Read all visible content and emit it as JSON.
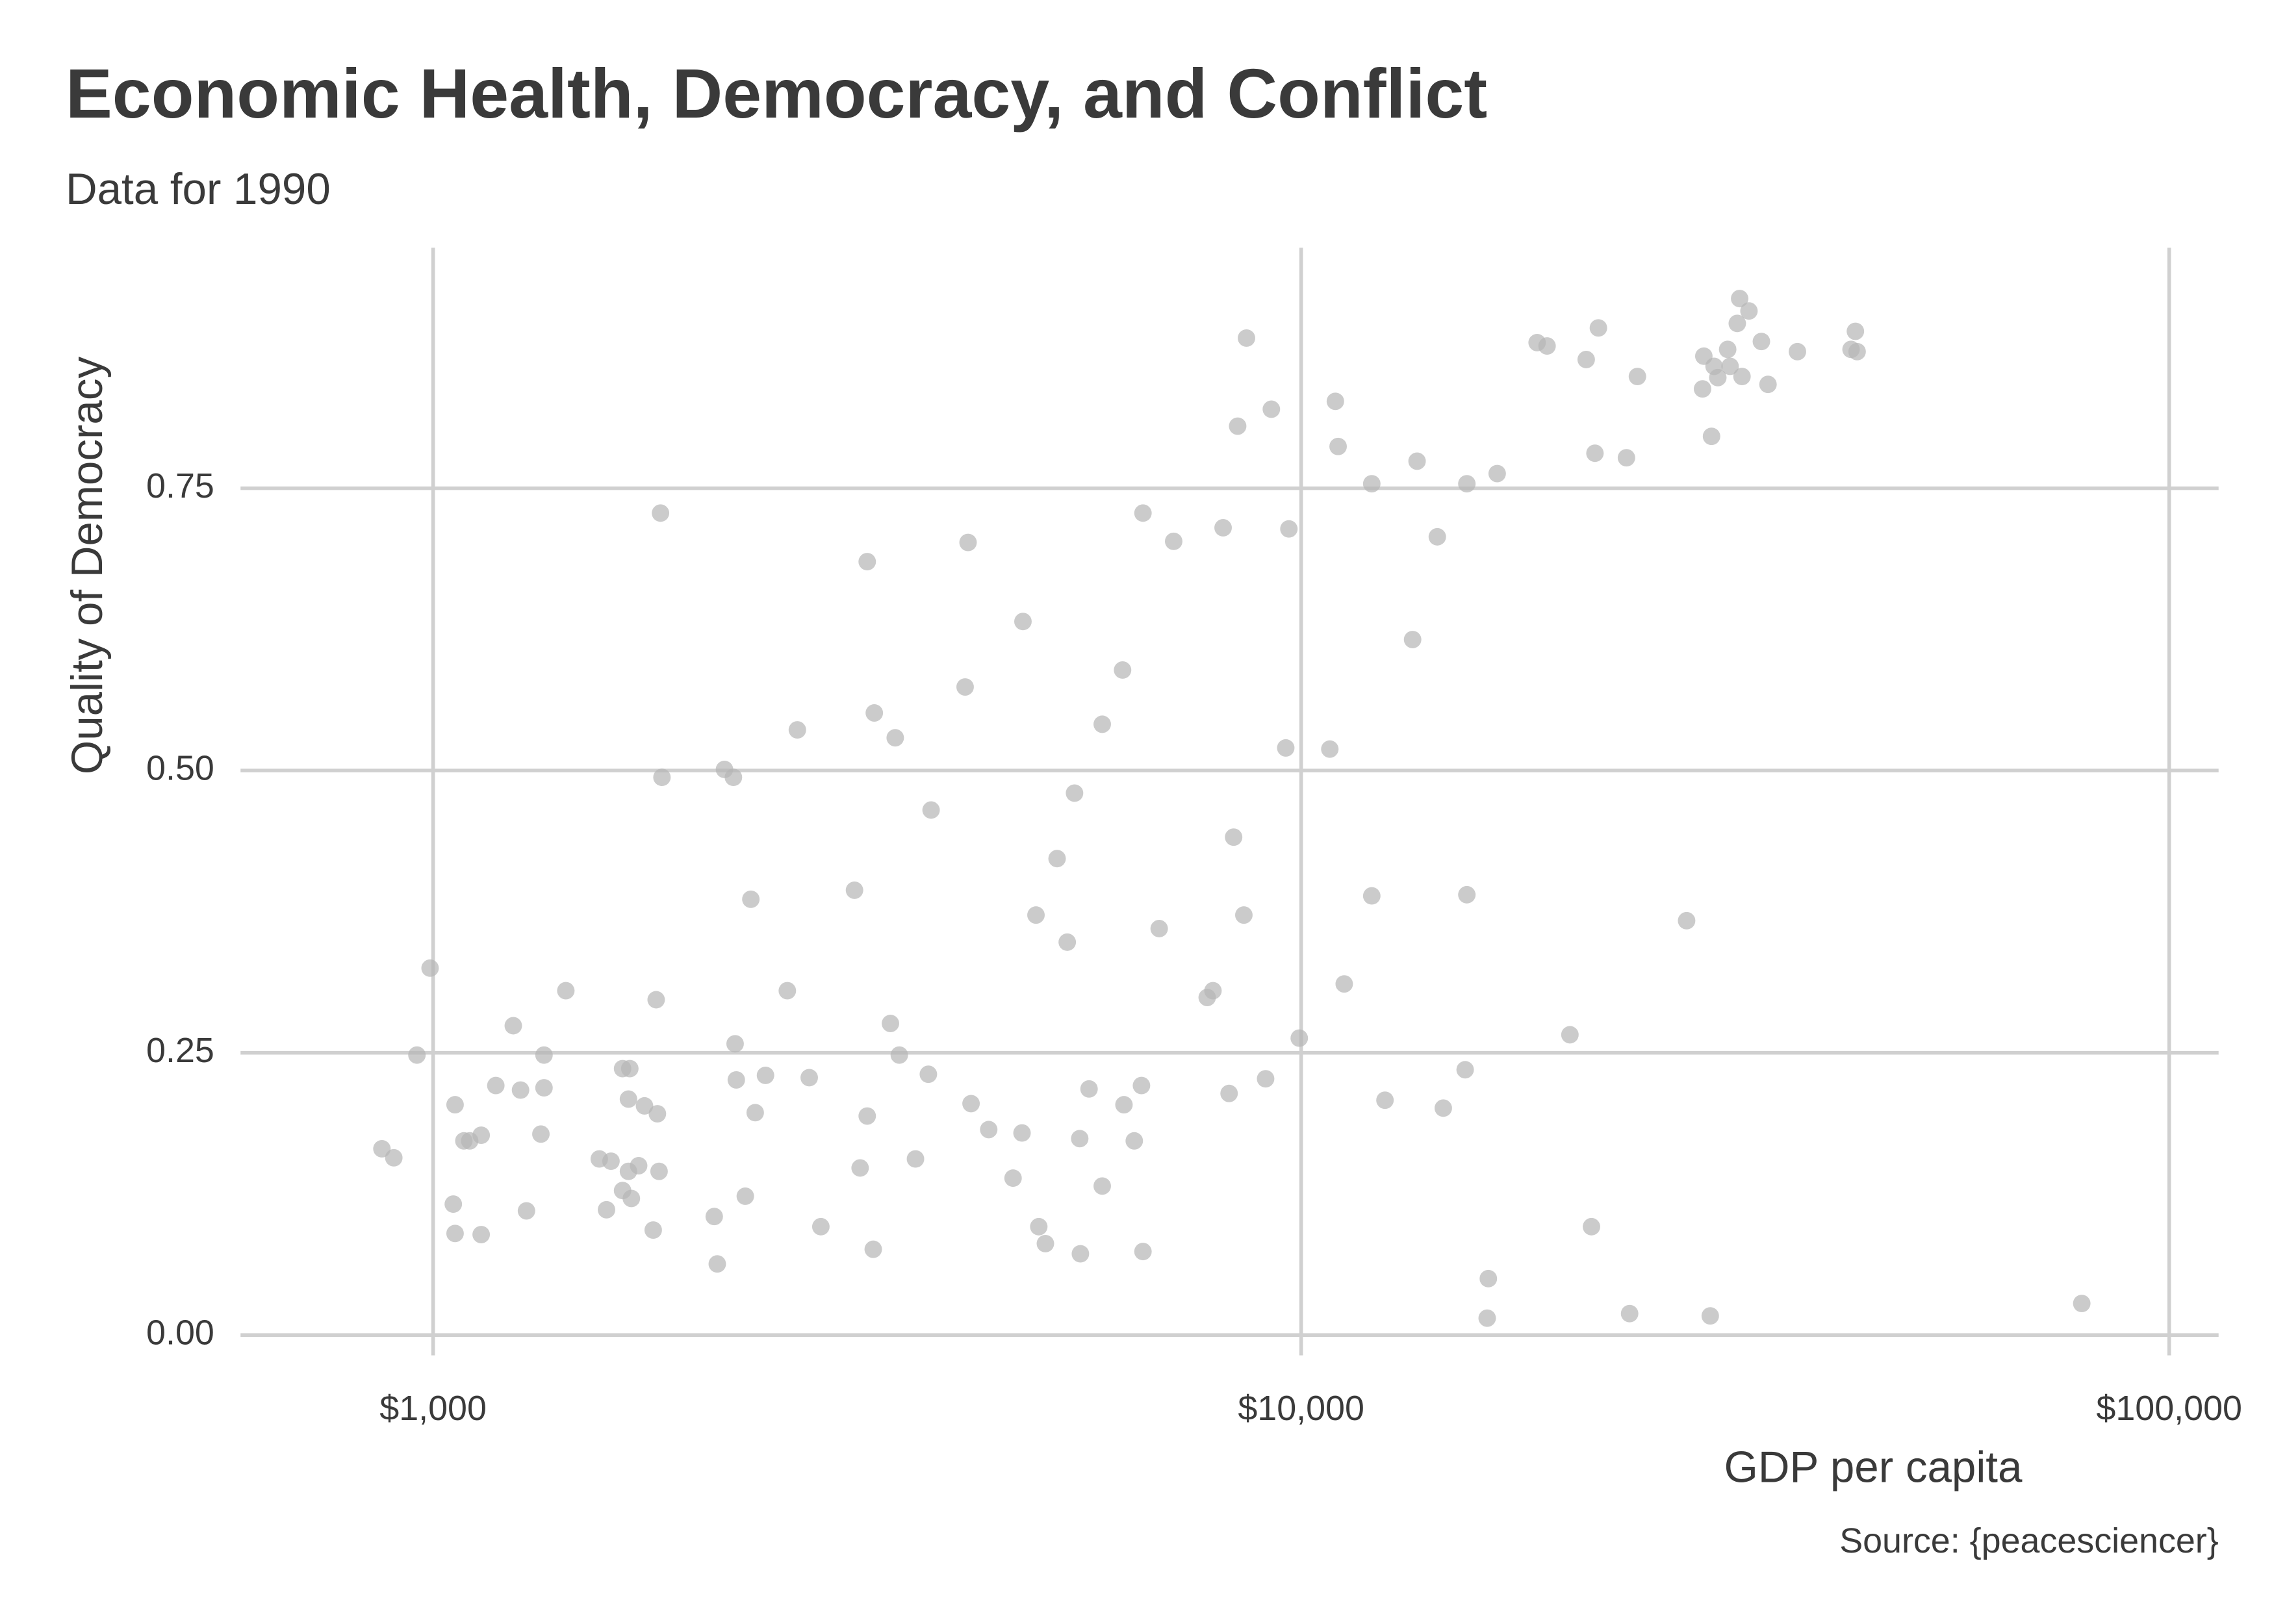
{
  "chart_data": {
    "type": "scatter",
    "title": "Economic Health, Democracy, and Conflict",
    "subtitle": "Data for 1990",
    "x_label": "GDP per capita",
    "y_label": "Quality of Democracy",
    "caption": "Source: {peacesciencer}",
    "x_scale": "log",
    "grid": true,
    "color": "#b5b5b5",
    "xlim": [
      600,
      114000
    ],
    "ylim": [
      -0.018,
      0.963
    ],
    "xticks": [
      {
        "value": 1000,
        "label": "$1,000"
      },
      {
        "value": 10000,
        "label": "$10,000"
      },
      {
        "value": 100000,
        "label": "$100,000"
      }
    ],
    "yticks": [
      {
        "value": 0,
        "label": "0.00"
      },
      {
        "value": 0.25,
        "label": "0.25"
      },
      {
        "value": 0.5,
        "label": "0.50"
      },
      {
        "value": 0.75,
        "label": "0.75"
      }
    ],
    "x": [
      873,
      901,
      958,
      992,
      1060,
      1055,
      1060,
      1085,
      1102,
      1136,
      1136,
      1181,
      1237,
      1261,
      1281,
      1331,
      1342,
      1342,
      1422,
      1554,
      1584,
      1603,
      1653,
      1653,
      1679,
      1685,
      1679,
      1692,
      1725,
      1752,
      1793,
      1807,
      1813,
      1821,
      1828,
      1835,
      2108,
      2125,
      2166,
      2218,
      2228,
      2235,
      2289,
      2323,
      2350,
      2415,
      2559,
      2628,
      2712,
      2797,
      3058,
      3104,
      3163,
      3163,
      3214,
      3223,
      3364,
      3407,
      3444,
      3595,
      3720,
      3747,
      4101,
      4133,
      4166,
      4366,
      4657,
      4781,
      4769,
      4949,
      4986,
      5074,
      5234,
      5377,
      5482,
      5558,
      5568,
      5697,
      5900,
      5900,
      6227,
      6250,
      6423,
      6547,
      6573,
      6573,
      6862,
      7131,
      7794,
      7914,
      8130,
      8260,
      8360,
      8450,
      8590,
      8650,
      9100,
      9240,
      9600,
      9680,
      9950,
      10790,
      10950,
      11030,
      11210,
      12060,
      12060,
      12490,
      13440,
      13600,
      14350,
      14580,
      15450,
      15520,
      15520,
      16380,
      16430,
      16820,
      18700,
      19200,
      20400,
      21300,
      21600,
      21800,
      22000,
      23700,
      23900,
      24400,
      27800,
      29000,
      29100,
      29600,
      29700,
      29900,
      30200,
      31000,
      31200,
      31800,
      32000,
      32200,
      32800,
      33900,
      34500,
      37300,
      43000,
      43500,
      43700,
      79300
    ],
    "values": [
      0.165,
      0.157,
      0.248,
      0.325,
      0.204,
      0.116,
      0.09,
      0.172,
      0.172,
      0.177,
      0.089,
      0.221,
      0.274,
      0.217,
      0.11,
      0.178,
      0.248,
      0.219,
      0.305,
      0.156,
      0.111,
      0.154,
      0.128,
      0.236,
      0.145,
      0.236,
      0.209,
      0.121,
      0.15,
      0.203,
      0.093,
      0.297,
      0.196,
      0.145,
      0.728,
      0.494,
      0.105,
      0.063,
      0.501,
      0.494,
      0.258,
      0.226,
      0.123,
      0.386,
      0.197,
      0.23,
      0.305,
      0.536,
      0.228,
      0.096,
      0.394,
      0.148,
      0.685,
      0.194,
      0.076,
      0.551,
      0.276,
      0.529,
      0.248,
      0.156,
      0.231,
      0.465,
      0.574,
      0.702,
      0.205,
      0.182,
      0.139,
      0.632,
      0.179,
      0.372,
      0.096,
      0.081,
      0.422,
      0.348,
      0.48,
      0.174,
      0.072,
      0.218,
      0.541,
      0.132,
      0.589,
      0.204,
      0.172,
      0.221,
      0.728,
      0.074,
      0.36,
      0.703,
      0.299,
      0.305,
      0.715,
      0.214,
      0.441,
      0.805,
      0.372,
      0.883,
      0.227,
      0.82,
      0.52,
      0.714,
      0.263,
      0.519,
      0.827,
      0.787,
      0.311,
      0.754,
      0.389,
      0.208,
      0.616,
      0.774,
      0.707,
      0.201,
      0.235,
      0.754,
      0.39,
      0.015,
      0.05,
      0.763,
      0.879,
      0.876,
      0.266,
      0.864,
      0.096,
      0.781,
      0.892,
      0.777,
      0.019,
      0.849,
      0.367,
      0.838,
      0.867,
      0.017,
      0.796,
      0.858,
      0.848,
      0.873,
      0.858,
      0.896,
      0.918,
      0.849,
      0.907,
      0.88,
      0.842,
      0.871,
      0.873,
      0.889,
      0.871,
      0.028
    ]
  }
}
